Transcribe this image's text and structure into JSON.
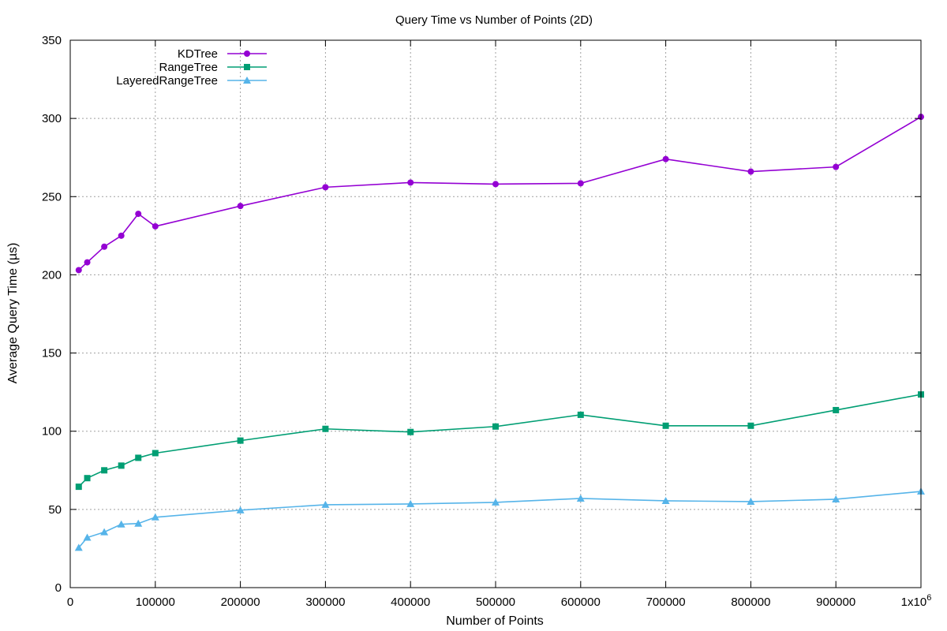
{
  "chart_data": {
    "type": "line",
    "title": "Query Time vs Number of Points (2D)",
    "xlabel": "Number of Points",
    "ylabel": "Average Query Time (µs)",
    "xlim": [
      0,
      1000000
    ],
    "ylim": [
      0,
      350
    ],
    "x_ticks": [
      0,
      100000,
      200000,
      300000,
      400000,
      500000,
      600000,
      700000,
      800000,
      900000,
      1000000
    ],
    "x_tick_labels": [
      "0",
      "100000",
      "200000",
      "300000",
      "400000",
      "500000",
      "600000",
      "700000",
      "800000",
      "900000",
      "1x10"
    ],
    "x_last_tick_exponent": "6",
    "y_ticks": [
      0,
      50,
      100,
      150,
      200,
      250,
      300,
      350
    ],
    "y_tick_labels": [
      "0",
      "50",
      "100",
      "150",
      "200",
      "250",
      "300",
      "350"
    ],
    "grid": true,
    "legend_position": "top-left",
    "x": [
      10000,
      20000,
      40000,
      60000,
      80000,
      100000,
      200000,
      300000,
      400000,
      500000,
      600000,
      700000,
      800000,
      900000,
      1000000
    ],
    "series": [
      {
        "name": "KDTree",
        "color": "#9400d3",
        "marker": "circle",
        "values": [
          203,
          208,
          218,
          225,
          239,
          231,
          244,
          256,
          259,
          258,
          258.5,
          274,
          266,
          269,
          301
        ]
      },
      {
        "name": "RangeTree",
        "color": "#009e73",
        "marker": "square",
        "values": [
          64.5,
          70,
          75,
          78,
          83,
          86,
          94,
          101.5,
          99.5,
          103,
          110.5,
          103.5,
          103.5,
          113.5,
          123.5
        ]
      },
      {
        "name": "LayeredRangeTree",
        "color": "#56b4e9",
        "marker": "triangle",
        "values": [
          25.5,
          32,
          35.5,
          40.5,
          41,
          45,
          49.5,
          53,
          53.5,
          54.5,
          57,
          55.5,
          55,
          56.5,
          61.5
        ]
      }
    ]
  }
}
